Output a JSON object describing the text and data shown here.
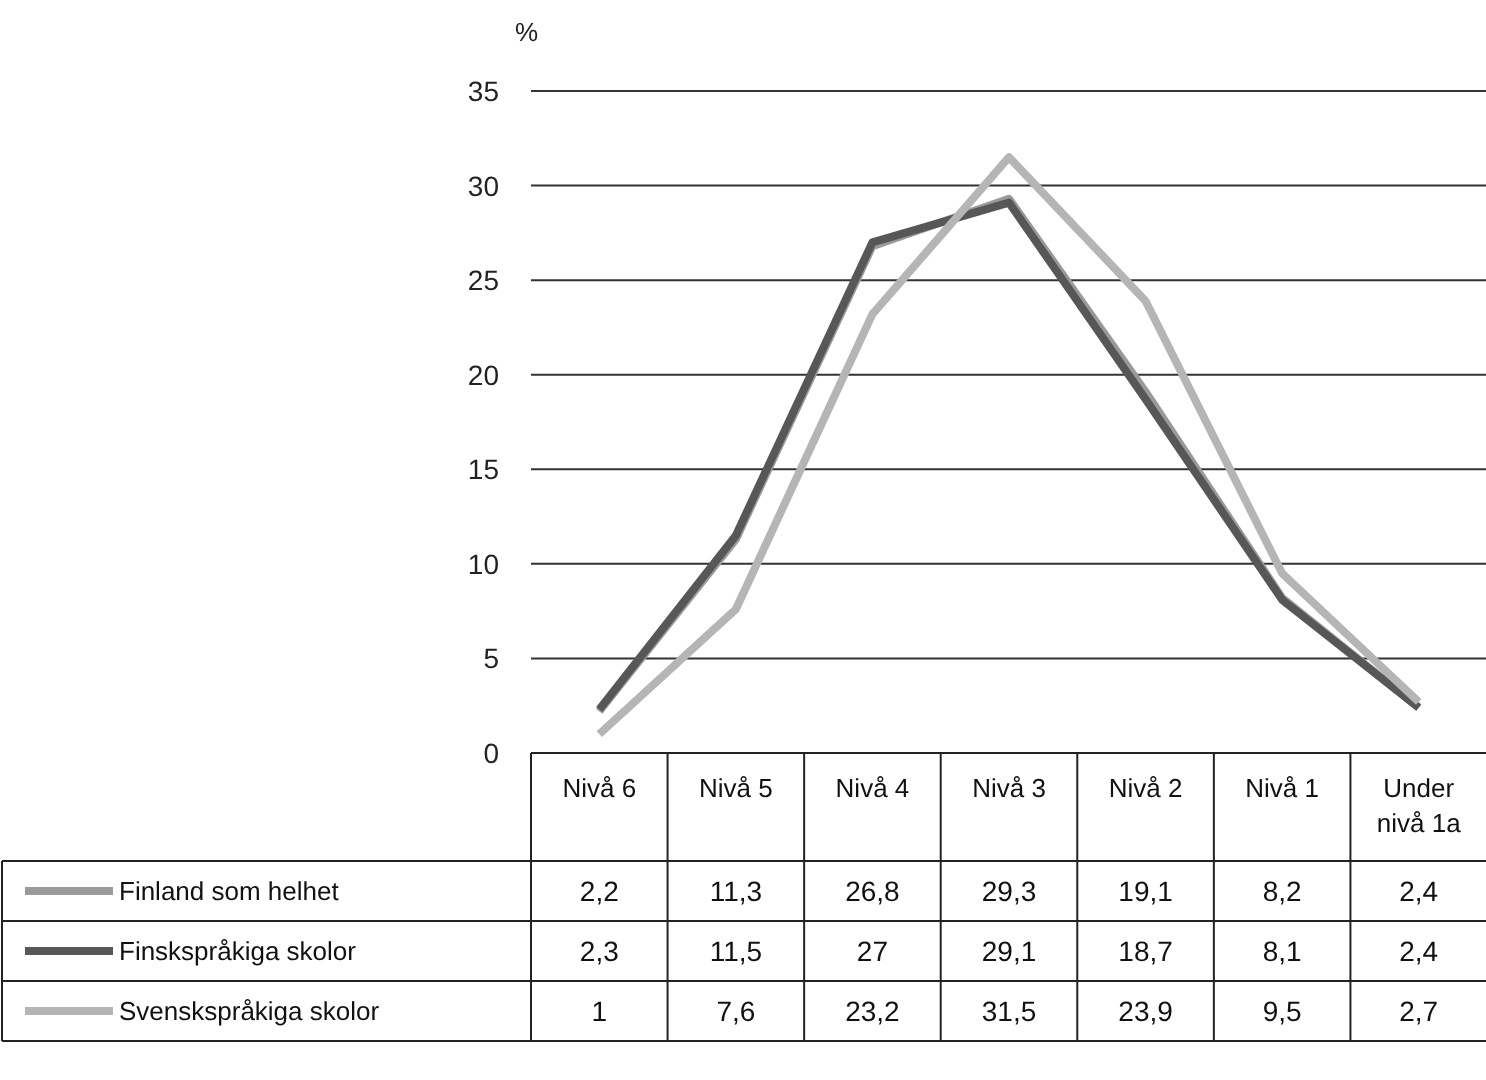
{
  "chart_data": {
    "type": "line",
    "ylabel": "%",
    "categories": [
      "Nivå 6",
      "Nivå 5",
      "Nivå 4",
      "Nivå 3",
      "Nivå 2",
      "Nivå 1",
      "Under nivå 1a"
    ],
    "series": [
      {
        "name": "Finland som helhet",
        "color": "#9a9a9a",
        "values": [
          2.2,
          11.3,
          26.8,
          29.3,
          19.1,
          8.2,
          2.4
        ],
        "value_labels": [
          "2,2",
          "11,3",
          "26,8",
          "29,3",
          "19,1",
          "8,2",
          "2,4"
        ]
      },
      {
        "name": "Finskspråkiga skolor",
        "color": "#575757",
        "values": [
          2.3,
          11.5,
          27,
          29.1,
          18.7,
          8.1,
          2.4
        ],
        "value_labels": [
          "2,3",
          "11,5",
          "27",
          "29,1",
          "18,7",
          "8,1",
          "2,4"
        ]
      },
      {
        "name": "Svenskspråkiga skolor",
        "color": "#b5b5b5",
        "values": [
          1,
          7.6,
          23.2,
          31.5,
          23.9,
          9.5,
          2.7
        ],
        "value_labels": [
          "1",
          "7,6",
          "23,2",
          "31,5",
          "23,9",
          "9,5",
          "2,7"
        ]
      }
    ],
    "ylim": [
      0,
      35
    ],
    "yticks": [
      0,
      5,
      10,
      15,
      20,
      25,
      30,
      35
    ],
    "grid": "y",
    "legend": "bottom",
    "line_style": "solid",
    "marker": "none"
  }
}
